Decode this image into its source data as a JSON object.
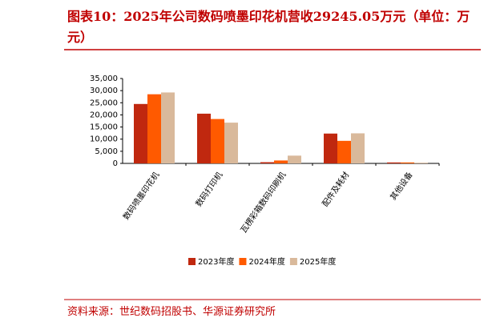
{
  "chart_data": {
    "type": "bar",
    "title": "图表10：2025年公司数码喷墨印花机营收29245.05万元（单位：万元）",
    "source": "资料来源：世纪数码招股书、华源证券研究所",
    "categories": [
      "数码喷墨印花机",
      "数码打印机",
      "瓦楞彩箱数码印刷机",
      "配件及耗材",
      "其他设备"
    ],
    "series": [
      {
        "name": "2023年度",
        "color": "#c0280f",
        "values": [
          24500,
          20500,
          500,
          12300,
          400
        ]
      },
      {
        "name": "2024年度",
        "color": "#ff5a00",
        "values": [
          28500,
          18300,
          1200,
          9300,
          400
        ]
      },
      {
        "name": "2025年度",
        "color": "#d9b99b",
        "values": [
          29245.05,
          16800,
          3200,
          12400,
          300
        ]
      }
    ],
    "ylim": [
      0,
      35000
    ],
    "yticks": [
      0,
      {
        "value": 5000,
        "label": "5,000"
      },
      {
        "value": 10000,
        "label": "10,000"
      },
      {
        "value": 15000,
        "label": "15,000"
      },
      {
        "value": 20000,
        "label": "20,000"
      },
      {
        "value": 25000,
        "label": "25,000"
      },
      {
        "value": 30000,
        "label": "30,000"
      },
      {
        "value": 35000,
        "label": "35,000"
      }
    ],
    "legend": "bottom"
  }
}
